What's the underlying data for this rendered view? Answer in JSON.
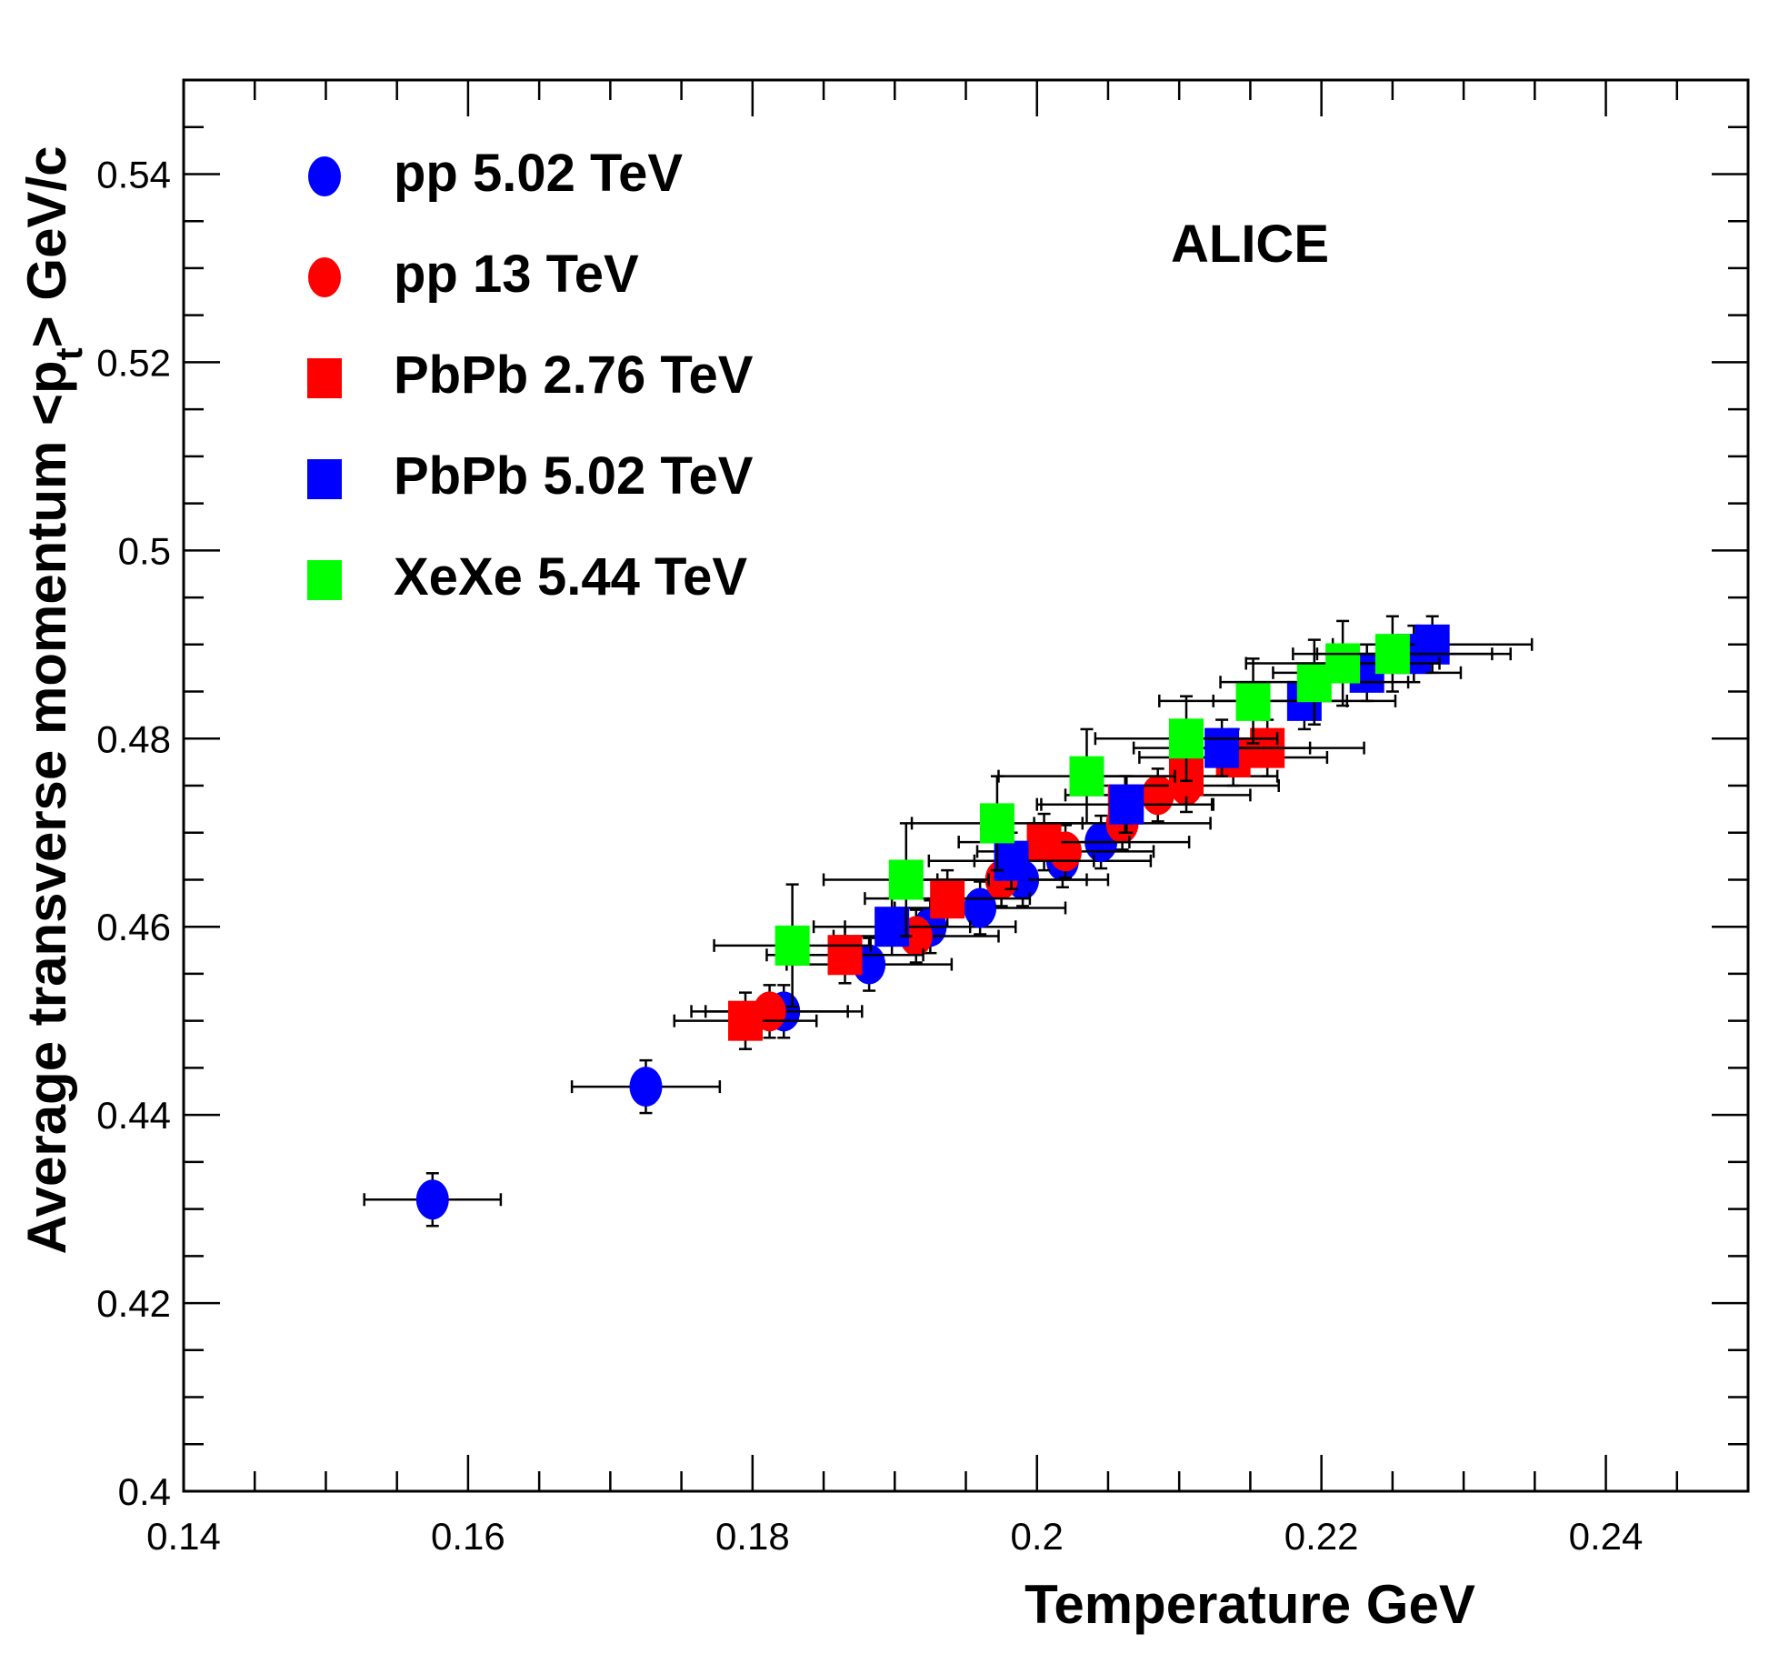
{
  "chart_data": {
    "type": "scatter",
    "title": "",
    "annotation": "ALICE",
    "xlabel": "Temperature GeV",
    "ylabel_main": "Average transverse momentum <p",
    "ylabel_sub": "t",
    "ylabel_tail": "> GeV/c",
    "xlim": [
      0.14,
      0.25
    ],
    "ylim": [
      0.4,
      0.55
    ],
    "x_ticks": [
      0.14,
      0.16,
      0.18,
      0.2,
      0.22,
      0.24
    ],
    "x_tick_labels": [
      "0.14",
      "0.16",
      "0.18",
      "0.2",
      "0.22",
      "0.24"
    ],
    "y_ticks": [
      0.4,
      0.42,
      0.44,
      0.46,
      0.48,
      0.5,
      0.52,
      0.54
    ],
    "y_tick_labels": [
      "0.4",
      "0.42",
      "0.44",
      "0.46",
      "0.48",
      "0.5",
      "0.52",
      "0.54"
    ],
    "grid": false,
    "legend_position": "top-left",
    "series": [
      {
        "name": "pp 5.02 TeV",
        "marker": "circle",
        "color": "#0000ff",
        "points": [
          {
            "x": 0.1575,
            "y": 0.431,
            "xerr": 0.0048,
            "yerr": 0.0028
          },
          {
            "x": 0.1725,
            "y": 0.443,
            "xerr": 0.0052,
            "yerr": 0.0028
          },
          {
            "x": 0.1822,
            "y": 0.451,
            "xerr": 0.0055,
            "yerr": 0.0028
          },
          {
            "x": 0.1882,
            "y": 0.456,
            "xerr": 0.0058,
            "yerr": 0.0028
          },
          {
            "x": 0.1925,
            "y": 0.46,
            "xerr": 0.006,
            "yerr": 0.0028
          },
          {
            "x": 0.196,
            "y": 0.462,
            "xerr": 0.006,
            "yerr": 0.0028
          },
          {
            "x": 0.199,
            "y": 0.465,
            "xerr": 0.006,
            "yerr": 0.0028
          },
          {
            "x": 0.2018,
            "y": 0.467,
            "xerr": 0.0062,
            "yerr": 0.0028
          },
          {
            "x": 0.2045,
            "y": 0.469,
            "xerr": 0.0062,
            "yerr": 0.0028
          }
        ]
      },
      {
        "name": "pp 13 TeV",
        "marker": "circle",
        "color": "#ff0000",
        "points": [
          {
            "x": 0.1812,
            "y": 0.451,
            "xerr": 0.0055,
            "yerr": 0.0028
          },
          {
            "x": 0.1915,
            "y": 0.459,
            "xerr": 0.0058,
            "yerr": 0.0028
          },
          {
            "x": 0.1975,
            "y": 0.465,
            "xerr": 0.006,
            "yerr": 0.0028
          },
          {
            "x": 0.202,
            "y": 0.468,
            "xerr": 0.0062,
            "yerr": 0.0028
          },
          {
            "x": 0.206,
            "y": 0.471,
            "xerr": 0.0062,
            "yerr": 0.0028
          },
          {
            "x": 0.2085,
            "y": 0.474,
            "xerr": 0.0065,
            "yerr": 0.0028
          },
          {
            "x": 0.2105,
            "y": 0.475,
            "xerr": 0.0065,
            "yerr": 0.0028
          }
        ]
      },
      {
        "name": "PbPb 2.76 TeV",
        "marker": "square",
        "color": "#ff0000",
        "points": [
          {
            "x": 0.1795,
            "y": 0.45,
            "xerr": 0.005,
            "yerr": 0.003
          },
          {
            "x": 0.1865,
            "y": 0.457,
            "xerr": 0.0055,
            "yerr": 0.003
          },
          {
            "x": 0.1937,
            "y": 0.463,
            "xerr": 0.0058,
            "yerr": 0.003
          },
          {
            "x": 0.2005,
            "y": 0.469,
            "xerr": 0.006,
            "yerr": 0.003
          },
          {
            "x": 0.2062,
            "y": 0.473,
            "xerr": 0.0062,
            "yerr": 0.003
          },
          {
            "x": 0.2105,
            "y": 0.476,
            "xerr": 0.0064,
            "yerr": 0.003
          },
          {
            "x": 0.2138,
            "y": 0.478,
            "xerr": 0.0066,
            "yerr": 0.003
          },
          {
            "x": 0.2162,
            "y": 0.479,
            "xerr": 0.0068,
            "yerr": 0.003
          }
        ]
      },
      {
        "name": "PbPb 5.02 TeV",
        "marker": "square",
        "color": "#0000ff",
        "points": [
          {
            "x": 0.1898,
            "y": 0.46,
            "xerr": 0.0055,
            "yerr": 0.003
          },
          {
            "x": 0.1982,
            "y": 0.467,
            "xerr": 0.0058,
            "yerr": 0.003
          },
          {
            "x": 0.2063,
            "y": 0.473,
            "xerr": 0.006,
            "yerr": 0.003
          },
          {
            "x": 0.213,
            "y": 0.479,
            "xerr": 0.0062,
            "yerr": 0.003
          },
          {
            "x": 0.2188,
            "y": 0.484,
            "xerr": 0.0064,
            "yerr": 0.003
          },
          {
            "x": 0.2232,
            "y": 0.487,
            "xerr": 0.0066,
            "yerr": 0.003
          },
          {
            "x": 0.2265,
            "y": 0.489,
            "xerr": 0.0068,
            "yerr": 0.003
          },
          {
            "x": 0.2278,
            "y": 0.49,
            "xerr": 0.007,
            "yerr": 0.003
          }
        ]
      },
      {
        "name": "XeXe 5.44 TeV",
        "marker": "square",
        "color": "#00ff00",
        "points": [
          {
            "x": 0.1828,
            "y": 0.458,
            "xerr": 0.0055,
            "yerr": 0.0065
          },
          {
            "x": 0.1908,
            "y": 0.465,
            "xerr": 0.0058,
            "yerr": 0.006
          },
          {
            "x": 0.1972,
            "y": 0.471,
            "xerr": 0.006,
            "yerr": 0.005
          },
          {
            "x": 0.2035,
            "y": 0.476,
            "xerr": 0.0062,
            "yerr": 0.005
          },
          {
            "x": 0.2105,
            "y": 0.48,
            "xerr": 0.0064,
            "yerr": 0.0045
          },
          {
            "x": 0.2152,
            "y": 0.484,
            "xerr": 0.0066,
            "yerr": 0.0045
          },
          {
            "x": 0.2195,
            "y": 0.486,
            "xerr": 0.0066,
            "yerr": 0.0045
          },
          {
            "x": 0.2215,
            "y": 0.488,
            "xerr": 0.0068,
            "yerr": 0.0045
          },
          {
            "x": 0.225,
            "y": 0.489,
            "xerr": 0.007,
            "yerr": 0.004
          }
        ]
      }
    ]
  }
}
